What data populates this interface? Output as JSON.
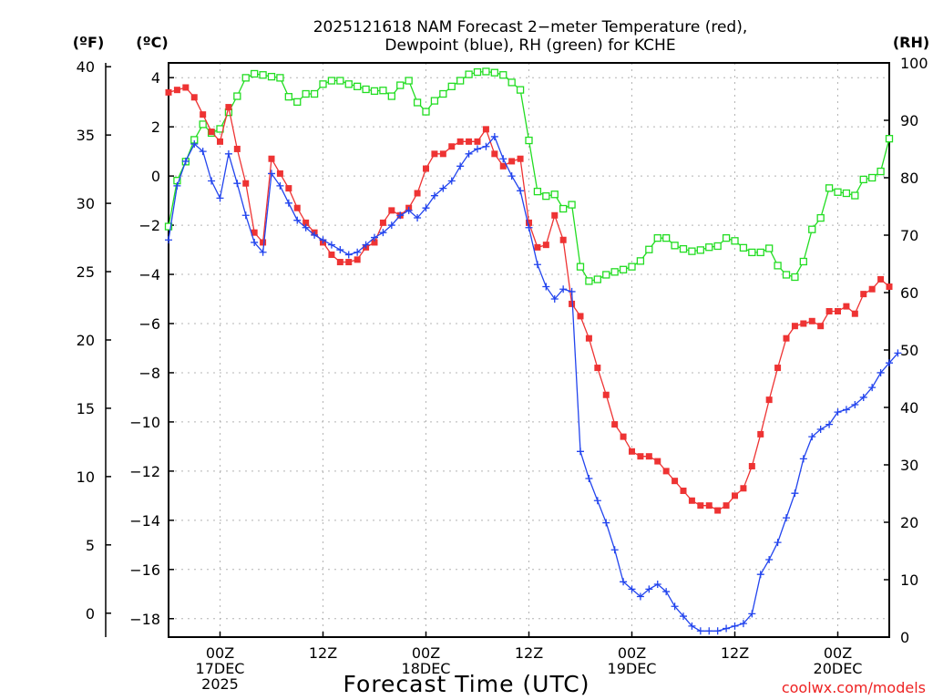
{
  "chart_data": {
    "type": "line",
    "title": "2025121618 NAM Forecast 2−meter Temperature (red),",
    "subtitle": "Dewpoint (blue), RH (green) for KCHE",
    "xlabel": "Forecast Time (UTC)",
    "credit": "coolwx.com/models",
    "unit_f": "(ºF)",
    "unit_c": "(ºC)",
    "unit_rh": "(RH)",
    "hours_range": [
      0,
      84
    ],
    "celsius_range": [
      -18.75,
      4.6
    ],
    "rh_range": [
      0,
      100
    ],
    "fahrenheit_ticks": [
      "40",
      "35",
      "30",
      "25",
      "20",
      "15",
      "10",
      "5",
      "0"
    ],
    "celsius_ticks": [
      "4",
      "2",
      "0",
      "−2",
      "−4",
      "−6",
      "−8",
      "−10",
      "−12",
      "−14",
      "−16",
      "−18"
    ],
    "rh_ticks": [
      "100",
      "90",
      "80",
      "70",
      "60",
      "50",
      "40",
      "30",
      "20",
      "10",
      "0"
    ],
    "x_ticks": [
      {
        "hour": 6,
        "lines": [
          "00Z",
          "17DEC",
          "2025"
        ]
      },
      {
        "hour": 18,
        "lines": [
          "12Z"
        ]
      },
      {
        "hour": 30,
        "lines": [
          "00Z",
          "18DEC"
        ]
      },
      {
        "hour": 42,
        "lines": [
          "12Z"
        ]
      },
      {
        "hour": 54,
        "lines": [
          "00Z",
          "19DEC"
        ]
      },
      {
        "hour": 66,
        "lines": [
          "12Z"
        ]
      },
      {
        "hour": 78,
        "lines": [
          "00Z",
          "20DEC"
        ]
      }
    ],
    "series": [
      {
        "name": "Temperature",
        "unit": "C",
        "color": "#ee3333",
        "marker": "square",
        "values": [
          3.4,
          3.5,
          3.6,
          3.2,
          2.5,
          1.8,
          1.4,
          2.8,
          1.1,
          -0.3,
          -2.3,
          -2.7,
          0.7,
          0.1,
          -0.5,
          -1.3,
          -1.9,
          -2.3,
          -2.7,
          -3.2,
          -3.5,
          -3.5,
          -3.4,
          -2.9,
          -2.7,
          -1.9,
          -1.4,
          -1.6,
          -1.3,
          -0.7,
          0.3,
          0.9,
          0.9,
          1.2,
          1.4,
          1.4,
          1.4,
          1.9,
          0.9,
          0.4,
          0.6,
          0.7,
          -1.9,
          -2.9,
          -2.8,
          -1.6,
          -2.6,
          -5.2,
          -5.7,
          -6.6,
          -7.8,
          -8.9,
          -10.1,
          -10.6,
          -11.2,
          -11.4,
          -11.4,
          -11.6,
          -12.0,
          -12.4,
          -12.8,
          -13.2,
          -13.4,
          -13.4,
          -13.6,
          -13.4,
          -13.0,
          -12.7,
          -11.8,
          -10.5,
          -9.1,
          -7.8,
          -6.6,
          -6.1,
          -6.0,
          -5.9,
          -6.1,
          -5.5,
          -5.5,
          -5.3,
          -5.6,
          -4.8,
          -4.6,
          -4.2,
          -4.5
        ],
        "interval_hours": 1
      },
      {
        "name": "Dewpoint",
        "unit": "C",
        "color": "#2244ee",
        "marker": "plus",
        "values": [
          -2.6,
          -0.4,
          0.6,
          1.3,
          1.0,
          -0.2,
          -0.9,
          0.9,
          -0.3,
          -1.6,
          -2.7,
          -3.1,
          0.1,
          -0.4,
          -1.1,
          -1.8,
          -2.1,
          -2.4,
          -2.6,
          -2.8,
          -3.0,
          -3.2,
          -3.1,
          -2.8,
          -2.5,
          -2.3,
          -2.0,
          -1.6,
          -1.4,
          -1.7,
          -1.3,
          -0.8,
          -0.5,
          -0.2,
          0.4,
          0.9,
          1.1,
          1.2,
          1.6,
          0.7,
          0.0,
          -0.6,
          -2.1,
          -3.6,
          -4.5,
          -5.0,
          -4.6,
          -4.7,
          -11.2,
          -12.3,
          -13.2,
          -14.1,
          -15.2,
          -16.5,
          -16.8,
          -17.1,
          -16.8,
          -16.6,
          -16.9,
          -17.5,
          -17.9,
          -18.3,
          -18.5,
          -18.5,
          -18.5,
          -18.4,
          -18.3,
          -18.2,
          -17.8,
          -16.2,
          -15.6,
          -14.9,
          -13.9,
          -12.9,
          -11.5,
          -10.6,
          -10.3,
          -10.1,
          -9.6,
          -9.5,
          -9.3,
          -9.0,
          -8.6,
          -8.0,
          -7.6,
          -7.2
        ],
        "interval_hours": 1
      },
      {
        "name": "RH",
        "unit": "%",
        "color": "#22dd22",
        "marker": "open-square",
        "values": [
          71.5,
          79.5,
          82.8,
          86.6,
          89.3,
          87.8,
          88.5,
          91.4,
          94.2,
          97.4,
          98.1,
          97.9,
          97.6,
          97.4,
          94.1,
          93.2,
          94.6,
          94.6,
          96.3,
          96.9,
          96.9,
          96.3,
          95.9,
          95.4,
          95.1,
          95.2,
          94.2,
          96.1,
          96.9,
          93.1,
          91.5,
          93.4,
          94.6,
          95.9,
          96.9,
          98.0,
          98.4,
          98.5,
          98.3,
          97.9,
          96.6,
          95.3,
          86.5,
          77.6,
          76.8,
          77.1,
          74.6,
          75.3,
          64.5,
          62.0,
          62.3,
          63.1,
          63.6,
          64.0,
          64.5,
          65.5,
          67.5,
          69.5,
          69.5,
          68.2,
          67.6,
          67.2,
          67.4,
          67.9,
          68.1,
          69.5,
          69.0,
          67.8,
          67.0,
          67.0,
          67.7,
          64.7,
          63.1,
          62.7,
          65.4,
          71.0,
          73.0,
          78.2,
          77.5,
          77.3,
          76.9,
          79.7,
          80.0,
          81.1,
          86.8
        ],
        "interval_hours": 1
      }
    ]
  }
}
